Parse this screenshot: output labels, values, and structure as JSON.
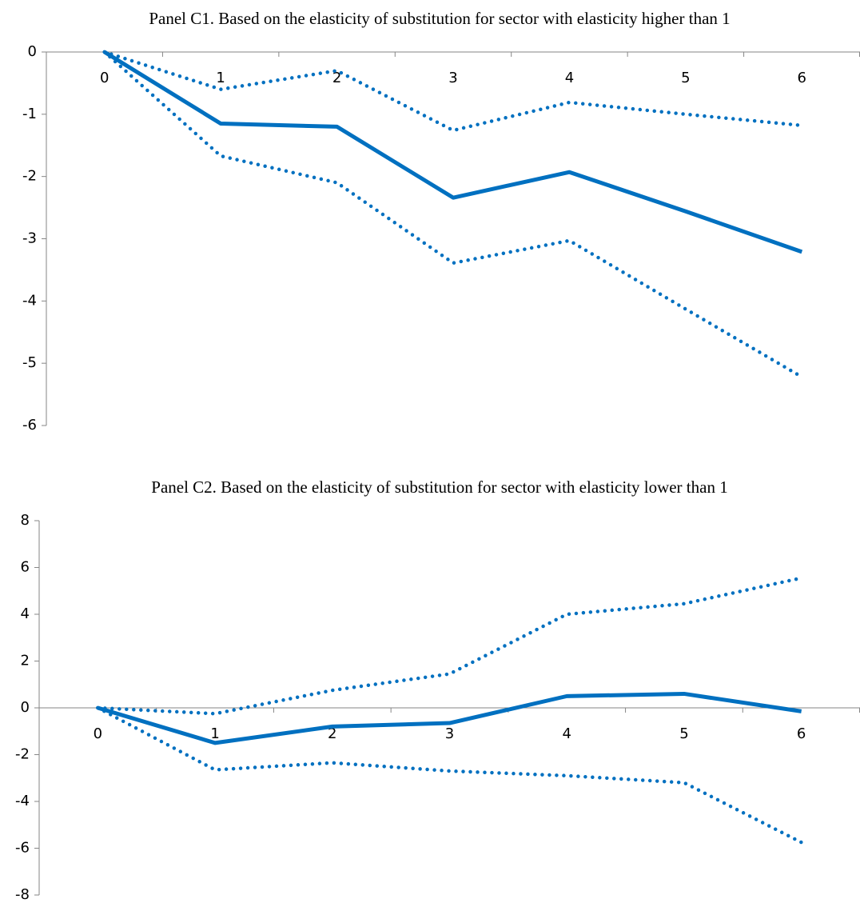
{
  "chart_data": [
    {
      "type": "line",
      "title": "Panel C1. Based on the elasticity of substitution for sector with elasticity higher than 1",
      "categories": [
        "0",
        "1",
        "2",
        "3",
        "4",
        "5",
        "6"
      ],
      "series": [
        {
          "color": "#0070c0",
          "dash": "solid",
          "values": [
            0,
            -1.15,
            -1.2,
            -2.34,
            -1.93,
            -2.56,
            -3.21
          ]
        },
        {
          "color": "#0070c0",
          "dash": "dotted",
          "values": [
            0,
            -0.6,
            -0.3,
            -1.26,
            -0.81,
            -1.0,
            -1.18
          ]
        },
        {
          "color": "#0070c0",
          "dash": "dotted",
          "values": [
            0,
            -1.67,
            -2.1,
            -3.39,
            -3.03,
            -4.13,
            -5.22
          ]
        }
      ],
      "ylim": [
        -6,
        0
      ],
      "yticks": [
        0,
        -1,
        -2,
        -3,
        -4,
        -5,
        -6
      ],
      "grid": false
    },
    {
      "type": "line",
      "title": "Panel C2. Based on the elasticity of substitution for sector with elasticity lower than 1",
      "categories": [
        "0",
        "1",
        "2",
        "3",
        "4",
        "5",
        "6"
      ],
      "series": [
        {
          "color": "#0070c0",
          "dash": "solid",
          "values": [
            0,
            -1.5,
            -0.8,
            -0.65,
            0.5,
            0.6,
            -0.15
          ]
        },
        {
          "color": "#0070c0",
          "dash": "dotted",
          "values": [
            0,
            -0.25,
            0.75,
            1.45,
            4.0,
            4.45,
            5.55
          ]
        },
        {
          "color": "#0070c0",
          "dash": "dotted",
          "values": [
            0,
            -2.65,
            -2.35,
            -2.7,
            -2.9,
            -3.2,
            -5.75
          ]
        }
      ],
      "ylim": [
        -8,
        8
      ],
      "yticks": [
        8,
        6,
        4,
        2,
        0,
        -2,
        -4,
        -6,
        -8
      ],
      "grid": false
    }
  ]
}
